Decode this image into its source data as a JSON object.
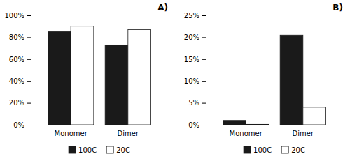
{
  "chart_data": [
    {
      "type": "bar",
      "title": "A)",
      "categories": [
        "Monomer",
        "Dimer"
      ],
      "series": [
        {
          "name": "100C",
          "color": "#1a1a1a",
          "values": [
            0.85,
            0.73
          ]
        },
        {
          "name": "20C",
          "color": "#ffffff",
          "values": [
            0.9,
            0.87
          ]
        }
      ],
      "ylim": [
        0,
        1.0
      ],
      "yticks": [
        {
          "value": 0,
          "label": "0%"
        },
        {
          "value": 0.2,
          "label": "20%"
        },
        {
          "value": 0.4,
          "label": "40%"
        },
        {
          "value": 0.6,
          "label": "60%"
        },
        {
          "value": 0.8,
          "label": "80%"
        },
        {
          "value": 1.0,
          "label": "100%"
        }
      ],
      "legend": "bottom"
    },
    {
      "type": "bar",
      "title": "B)",
      "categories": [
        "Monomer",
        "Dimer"
      ],
      "series": [
        {
          "name": "100C",
          "color": "#1a1a1a",
          "values": [
            0.01,
            0.205
          ]
        },
        {
          "name": "20C",
          "color": "#ffffff",
          "values": [
            0.001,
            0.04
          ]
        }
      ],
      "ylim": [
        0,
        0.25
      ],
      "yticks": [
        {
          "value": 0,
          "label": "0%"
        },
        {
          "value": 0.05,
          "label": "5%"
        },
        {
          "value": 0.1,
          "label": "10%"
        },
        {
          "value": 0.15,
          "label": "15%"
        },
        {
          "value": 0.2,
          "label": "20%"
        },
        {
          "value": 0.25,
          "label": "25%"
        }
      ],
      "legend": "bottom"
    }
  ]
}
